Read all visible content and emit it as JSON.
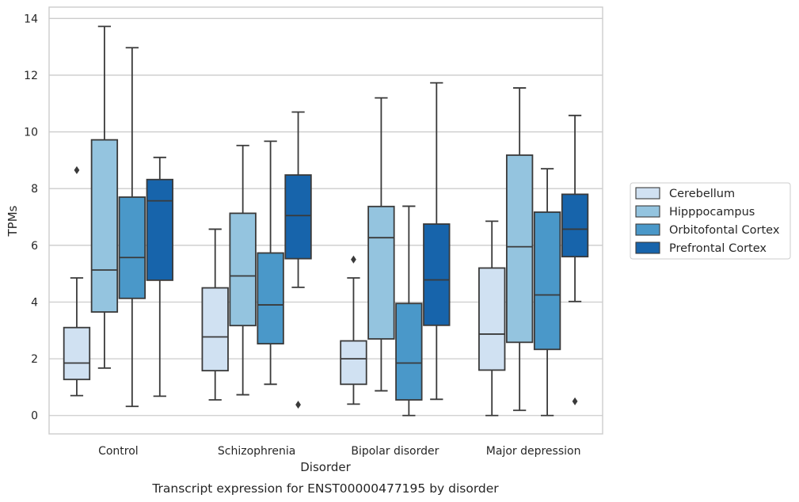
{
  "caption": "Transcript expression for ENST00000477195 by disorder",
  "chart_data": {
    "type": "boxplot",
    "xlabel": "Disorder",
    "ylabel": "TPMs",
    "ylim": [
      -0.65,
      14.4
    ],
    "yticks": [
      0,
      2,
      4,
      6,
      8,
      10,
      12,
      14
    ],
    "grid": "horizontal",
    "legend_position": "right",
    "categories": [
      "Control",
      "Schizophrenia",
      "Bipolar disorder",
      "Major depression"
    ],
    "series": [
      {
        "name": "Cerebellum",
        "color": "#d0e1f2",
        "boxes": [
          {
            "whislo": 0.7,
            "q1": 1.27,
            "med": 1.85,
            "q3": 3.1,
            "whishi": 4.85,
            "fliers": [
              8.65
            ]
          },
          {
            "whislo": 0.55,
            "q1": 1.58,
            "med": 2.77,
            "q3": 4.5,
            "whishi": 6.57,
            "fliers": []
          },
          {
            "whislo": 0.4,
            "q1": 1.1,
            "med": 2.0,
            "q3": 2.63,
            "whishi": 4.85,
            "fliers": [
              5.5
            ]
          },
          {
            "whislo": 0.0,
            "q1": 1.6,
            "med": 2.87,
            "q3": 5.2,
            "whishi": 6.85,
            "fliers": []
          }
        ]
      },
      {
        "name": "Hipppocampus",
        "color": "#94c4df",
        "boxes": [
          {
            "whislo": 1.67,
            "q1": 3.65,
            "med": 5.13,
            "q3": 9.72,
            "whishi": 13.72,
            "fliers": []
          },
          {
            "whislo": 0.73,
            "q1": 3.17,
            "med": 4.92,
            "q3": 7.13,
            "whishi": 9.52,
            "fliers": []
          },
          {
            "whislo": 0.87,
            "q1": 2.7,
            "med": 6.27,
            "q3": 7.37,
            "whishi": 11.2,
            "fliers": []
          },
          {
            "whislo": 0.18,
            "q1": 2.58,
            "med": 5.95,
            "q3": 9.18,
            "whishi": 11.55,
            "fliers": []
          }
        ]
      },
      {
        "name": "Orbitofontal Cortex",
        "color": "#4a98c9",
        "boxes": [
          {
            "whislo": 0.32,
            "q1": 4.13,
            "med": 5.57,
            "q3": 7.7,
            "whishi": 12.97,
            "fliers": []
          },
          {
            "whislo": 1.1,
            "q1": 2.53,
            "med": 3.9,
            "q3": 5.73,
            "whishi": 9.67,
            "fliers": []
          },
          {
            "whislo": 0.0,
            "q1": 0.55,
            "med": 1.85,
            "q3": 3.95,
            "whishi": 7.38,
            "fliers": []
          },
          {
            "whislo": 0.0,
            "q1": 2.33,
            "med": 4.25,
            "q3": 7.17,
            "whishi": 8.7,
            "fliers": []
          }
        ]
      },
      {
        "name": "Prefrontal Cortex",
        "color": "#1764ab",
        "boxes": [
          {
            "whislo": 0.68,
            "q1": 4.77,
            "med": 7.57,
            "q3": 8.32,
            "whishi": 9.1,
            "fliers": []
          },
          {
            "whislo": 4.52,
            "q1": 5.53,
            "med": 7.05,
            "q3": 8.48,
            "whishi": 10.7,
            "fliers": [
              0.38
            ]
          },
          {
            "whislo": 0.57,
            "q1": 3.18,
            "med": 4.78,
            "q3": 6.75,
            "whishi": 11.73,
            "fliers": []
          },
          {
            "whislo": 4.02,
            "q1": 5.6,
            "med": 6.57,
            "q3": 7.8,
            "whishi": 10.58,
            "fliers": [
              0.5
            ]
          }
        ]
      }
    ]
  }
}
